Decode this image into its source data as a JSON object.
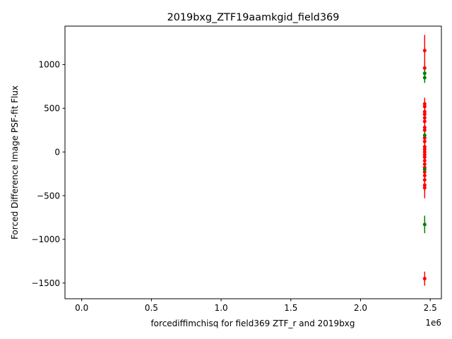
{
  "chart_data": {
    "type": "scatter",
    "title": "2019bxg_ZTF19aamkgid_field369",
    "xlabel": "forcediffimchisq for field369 ZTF_r and 2019bxg",
    "ylabel": "Forced Difference Image PSF-fit Flux",
    "x_offset_label": "1e6",
    "xlim": [
      -120000,
      2580000
    ],
    "ylim": [
      -1680,
      1440
    ],
    "x_ticks": [
      0,
      500000,
      1000000,
      1500000,
      2000000,
      2500000
    ],
    "x_tick_labels": [
      "0.0",
      "0.5",
      "1.0",
      "1.5",
      "2.0",
      "2.5"
    ],
    "y_ticks": [
      -1500,
      -1000,
      -500,
      0,
      500,
      1000
    ],
    "y_tick_labels": [
      "−1500",
      "−1000",
      "−500",
      "0",
      "500",
      "1000"
    ],
    "grid": false,
    "series": [
      {
        "color": "#ff0000",
        "points": [
          {
            "x": 2460000,
            "y": 1160,
            "err": 180
          },
          {
            "x": 2460000,
            "y": 960,
            "err": 60
          },
          {
            "x": 2460000,
            "y": 550,
            "err": 70
          },
          {
            "x": 2460000,
            "y": 520,
            "err": 60
          },
          {
            "x": 2460000,
            "y": 460,
            "err": 60
          },
          {
            "x": 2460000,
            "y": 430,
            "err": 60
          },
          {
            "x": 2460000,
            "y": 390,
            "err": 60
          },
          {
            "x": 2460000,
            "y": 350,
            "err": 60
          },
          {
            "x": 2460000,
            "y": 280,
            "err": 60
          },
          {
            "x": 2460000,
            "y": 250,
            "err": 60
          },
          {
            "x": 2460000,
            "y": 160,
            "err": 60
          },
          {
            "x": 2460000,
            "y": 120,
            "err": 60
          },
          {
            "x": 2460000,
            "y": 60,
            "err": 60
          },
          {
            "x": 2460000,
            "y": 30,
            "err": 60
          },
          {
            "x": 2460000,
            "y": 0,
            "err": 60
          },
          {
            "x": 2460000,
            "y": -30,
            "err": 60
          },
          {
            "x": 2460000,
            "y": -60,
            "err": 60
          },
          {
            "x": 2460000,
            "y": -100,
            "err": 60
          },
          {
            "x": 2460000,
            "y": -140,
            "err": 60
          },
          {
            "x": 2460000,
            "y": -180,
            "err": 60
          },
          {
            "x": 2460000,
            "y": -230,
            "err": 60
          },
          {
            "x": 2460000,
            "y": -270,
            "err": 60
          },
          {
            "x": 2460000,
            "y": -320,
            "err": 60
          },
          {
            "x": 2460000,
            "y": -380,
            "err": 70
          },
          {
            "x": 2460000,
            "y": -410,
            "err": 120
          },
          {
            "x": 2460000,
            "y": -1450,
            "err": 80
          }
        ]
      },
      {
        "color": "#008000",
        "points": [
          {
            "x": 2460000,
            "y": 900,
            "err": 60
          },
          {
            "x": 2460000,
            "y": 850,
            "err": 60
          },
          {
            "x": 2460000,
            "y": 190,
            "err": 60
          },
          {
            "x": 2460000,
            "y": -200,
            "err": 60
          },
          {
            "x": 2460000,
            "y": -830,
            "err": 100
          }
        ]
      }
    ]
  }
}
